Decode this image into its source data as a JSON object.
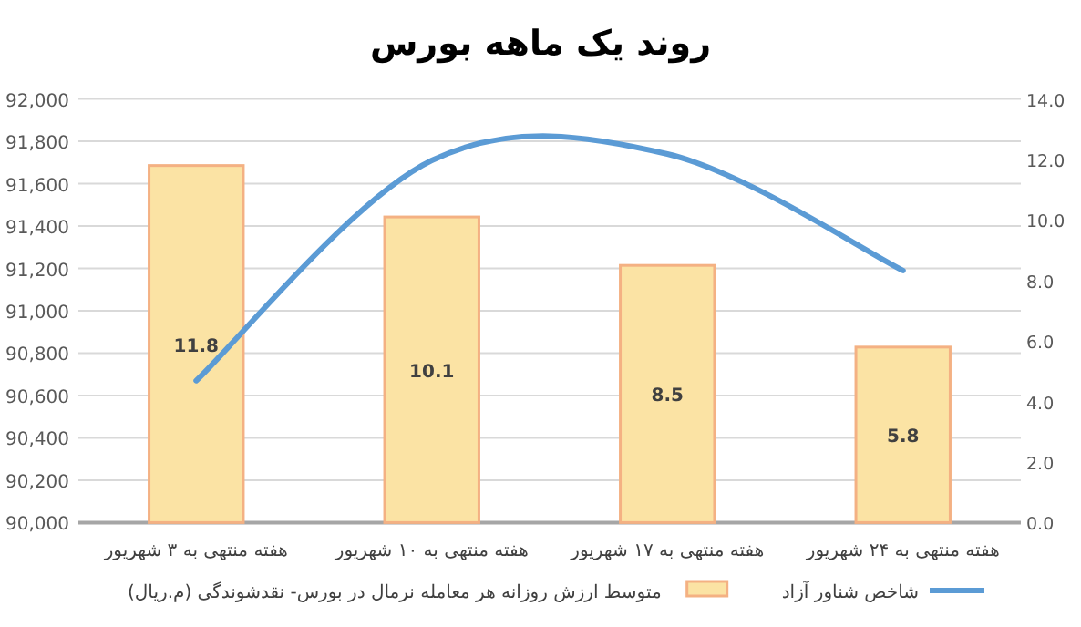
{
  "chart_data": {
    "type": "bar",
    "title": "روند یک ماهه بورس",
    "categories": [
      "هفته منتهی به ۳ شهریور",
      "هفته منتهی به ۱۰ شهریور",
      "هفته منتهی به ۱۷ شهریور",
      "هفته منتهی به ۲۴ شهریور"
    ],
    "series": [
      {
        "name": "متوسط ارزش روزانه هر معامله نرمال در بورس- نقدشوندگی (م.ریال)",
        "axis": "y2",
        "color": "#fbe3a4",
        "values": [
          11.8,
          10.1,
          8.5,
          5.8
        ],
        "value_labels": [
          "11.8",
          "10.1",
          "8.5",
          "5.8"
        ]
      },
      {
        "name": "شاخص شناور آزاد",
        "type": "line",
        "axis": "y",
        "color": "#5b9bd5",
        "values": [
          90670,
          91710,
          91740,
          91190
        ]
      }
    ],
    "ylim": [
      90000,
      92000
    ],
    "yticks": [
      {
        "value": 90000,
        "label": "90,000"
      },
      {
        "value": 90200,
        "label": "90,200"
      },
      {
        "value": 90400,
        "label": "90,400"
      },
      {
        "value": 90600,
        "label": "90,600"
      },
      {
        "value": 90800,
        "label": "90,800"
      },
      {
        "value": 91000,
        "label": "91,000"
      },
      {
        "value": 91200,
        "label": "91,200"
      },
      {
        "value": 91400,
        "label": "91,400"
      },
      {
        "value": 91600,
        "label": "91,600"
      },
      {
        "value": 91800,
        "label": "91,800"
      },
      {
        "value": 92000,
        "label": "92,000"
      }
    ],
    "y2lim": [
      0,
      14
    ],
    "y2ticks": [
      {
        "value": 0,
        "label": "0.0"
      },
      {
        "value": 2,
        "label": "2.0"
      },
      {
        "value": 4,
        "label": "4.0"
      },
      {
        "value": 6,
        "label": "6.0"
      },
      {
        "value": 8,
        "label": "8.0"
      },
      {
        "value": 10,
        "label": "10.0"
      },
      {
        "value": 12,
        "label": "12.0"
      },
      {
        "value": 14,
        "label": "14.0"
      }
    ],
    "grid": "y",
    "legend": "bottom",
    "marker": "none",
    "line_style": "solid"
  }
}
